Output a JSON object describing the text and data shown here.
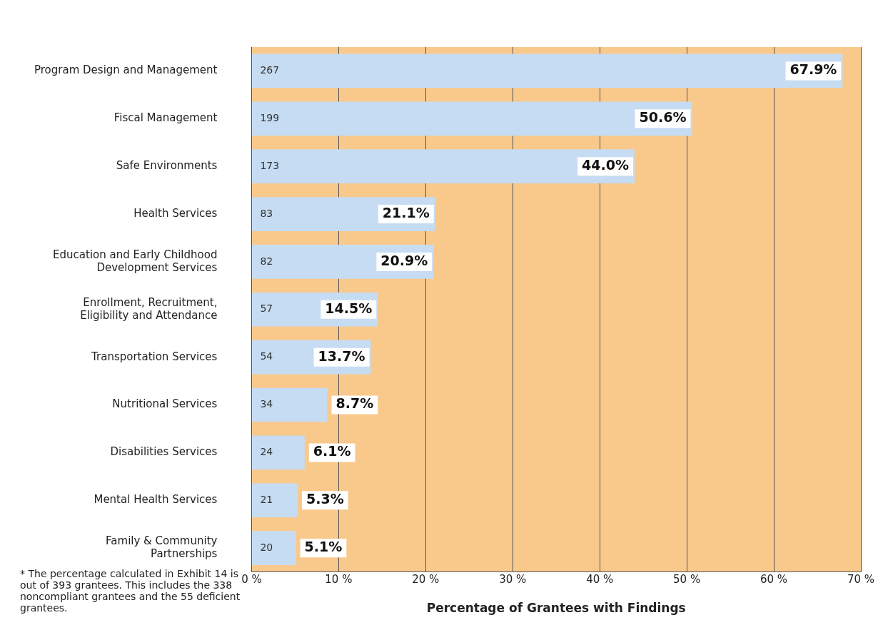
{
  "chart_data": {
    "type": "bar",
    "orientation": "horizontal",
    "xlabel": "Percentage of Grantees with Findings",
    "categories": [
      "Program Design and Management",
      "Fiscal Management",
      "Safe Environments",
      "Health Services",
      "Education and Early Childhood Development Services",
      "Enrollment, Recruitment, Eligibility and Attendance",
      "Transportation Services",
      "Nutritional Services",
      "Disabilities Services",
      "Mental Health Services",
      "Family & Community Partnerships"
    ],
    "values": [
      67.9,
      50.6,
      44.0,
      21.1,
      20.9,
      14.5,
      13.7,
      8.7,
      6.1,
      5.3,
      5.1
    ],
    "value_labels": [
      "67.9%",
      "50.6%",
      "44.0%",
      "21.1%",
      "20.9%",
      "14.5%",
      "13.7%",
      "8.7%",
      "6.1%",
      "5.3%",
      "5.1%"
    ],
    "color": "#c6dcf3",
    "xlim": [
      0,
      70
    ],
    "xticks": [
      {
        "value": 0,
        "label": "0 %"
      },
      {
        "value": 10,
        "label": "10 %"
      },
      {
        "value": 20,
        "label": "20 %"
      },
      {
        "value": 30,
        "label": "30 %"
      },
      {
        "value": 40,
        "label": "40 %"
      },
      {
        "value": 50,
        "label": "50 %"
      },
      {
        "value": 60,
        "label": "60 %"
      },
      {
        "value": 70,
        "label": "70 %"
      }
    ],
    "grid": "x",
    "annotations": [
      {
        "text": "267",
        "y": "Program Design and Management"
      },
      {
        "text": "199",
        "y": "Fiscal Management"
      },
      {
        "text": "173",
        "y": "Safe Environments"
      },
      {
        "text": "83",
        "y": "Health Services"
      },
      {
        "text": "82",
        "y": "Education and Early Childhood Development Services"
      },
      {
        "text": "57",
        "y": "Enrollment, Recruitment, Eligibility and Attendance"
      },
      {
        "text": "54",
        "y": "Transportation Services"
      },
      {
        "text": "34",
        "y": "Nutritional Services"
      },
      {
        "text": "24",
        "y": "Disabilities Services"
      },
      {
        "text": "21",
        "y": "Mental Health Services"
      },
      {
        "text": "20",
        "y": "Family & Community Partnerships"
      },
      "* The percentage calculated in Exhibit 14 is out of 393 grantees. This includes the 338 noncompliant grantees and the 55 deficient grantees."
    ]
  }
}
